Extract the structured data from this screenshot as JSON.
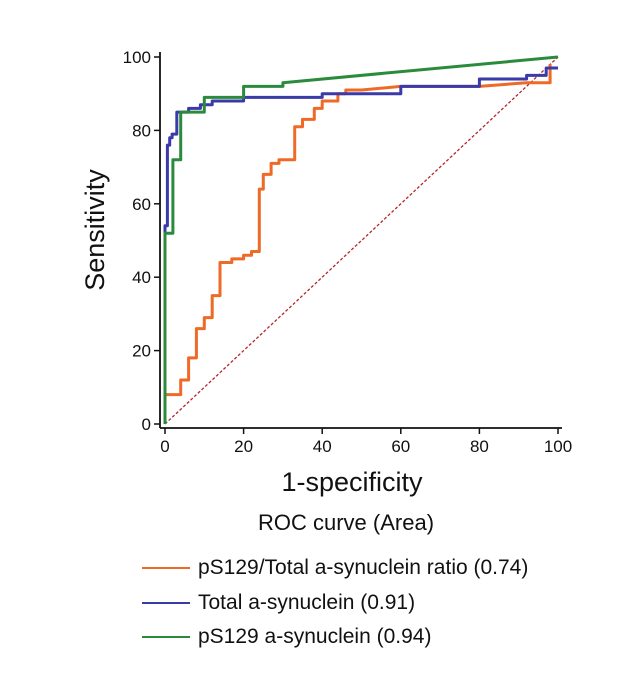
{
  "chart_data": {
    "type": "line",
    "title": "",
    "xlabel": "1-specificity",
    "ylabel": "Sensitivity",
    "xlim": [
      0,
      100
    ],
    "ylim": [
      0,
      100
    ],
    "xticks": [
      0,
      20,
      40,
      60,
      80,
      100
    ],
    "yticks": [
      0,
      20,
      40,
      60,
      80,
      100
    ],
    "grid": false,
    "legend_title": "ROC curve (Area)",
    "legend_position": "bottom",
    "series": [
      {
        "name": "pS129/Total a-synuclein ratio (0.74)",
        "color": "#ee6a26",
        "x": [
          0,
          0,
          4,
          4,
          6,
          6,
          8,
          8,
          10,
          10,
          12,
          12,
          14,
          14,
          17,
          17,
          20,
          20,
          22,
          22,
          24,
          24,
          25,
          25,
          27,
          27,
          29,
          29,
          33,
          33,
          35,
          35,
          38,
          38,
          40,
          40,
          44,
          44,
          46,
          46,
          50,
          60,
          80,
          92,
          98,
          98
        ],
        "y": [
          0,
          8,
          8,
          12,
          12,
          18,
          18,
          26,
          26,
          29,
          29,
          35,
          35,
          44,
          44,
          45,
          45,
          46,
          46,
          47,
          47,
          64,
          64,
          68,
          68,
          71,
          71,
          72,
          72,
          81,
          81,
          83,
          83,
          86,
          86,
          88,
          88,
          90,
          90,
          91,
          91,
          92,
          92,
          93,
          93,
          98
        ]
      },
      {
        "name": "Total a-synuclein (0.91)",
        "color": "#3a3aa8",
        "x": [
          0,
          0,
          0.6,
          0.6,
          1.2,
          1.2,
          1.8,
          1.8,
          3,
          3,
          6,
          6,
          9,
          9,
          12,
          12,
          20,
          20,
          40,
          40,
          60,
          60,
          80,
          80,
          92,
          92,
          97,
          97,
          100
        ],
        "y": [
          0,
          54,
          54,
          76,
          76,
          78,
          78,
          79,
          79,
          85,
          85,
          86,
          86,
          87,
          87,
          88,
          88,
          89,
          89,
          90,
          90,
          92,
          92,
          94,
          94,
          95,
          95,
          97,
          97
        ]
      },
      {
        "name": "pS129 a-synuclein (0.94)",
        "color": "#2b8b3c",
        "x": [
          0,
          0,
          2,
          2,
          4,
          4,
          10,
          10,
          20,
          20,
          30,
          30,
          100
        ],
        "y": [
          0,
          52,
          52,
          72,
          72,
          85,
          85,
          89,
          89,
          92,
          92,
          93,
          100
        ]
      },
      {
        "name": "",
        "color": "#b3262b",
        "dashed": true,
        "x": [
          0,
          100
        ],
        "y": [
          0,
          100
        ]
      }
    ]
  }
}
